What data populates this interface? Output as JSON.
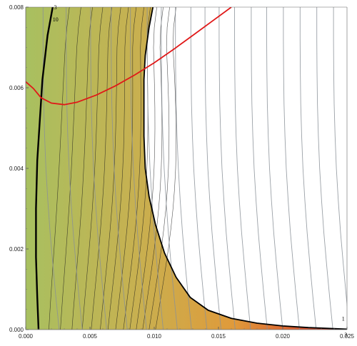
{
  "chart_data": {
    "type": "contour",
    "title": "",
    "xlabel": "",
    "ylabel": "",
    "xlim": [
      0,
      0.025
    ],
    "ylim": [
      0,
      0.008
    ],
    "x_ticks": [
      {
        "value": 0.0,
        "label": "0.000"
      },
      {
        "value": 0.005,
        "label": "0.005"
      },
      {
        "value": 0.01,
        "label": "0.010"
      },
      {
        "value": 0.015,
        "label": "0.015"
      },
      {
        "value": 0.02,
        "label": "0.020"
      },
      {
        "value": 0.025,
        "label": "0.025"
      }
    ],
    "y_ticks": [
      {
        "value": 0.0,
        "label": "0.000"
      },
      {
        "value": 0.002,
        "label": "0.002"
      },
      {
        "value": 0.004,
        "label": "0.004"
      },
      {
        "value": 0.006,
        "label": "0.006"
      },
      {
        "value": 0.008,
        "label": "0.008"
      }
    ],
    "colors": {
      "region_left": "#a8c060",
      "region_mid": "#e0a040",
      "region_edge": "#d8302a",
      "boundary": "#000000",
      "red_curve": "#e01818",
      "gray_lines": "#8a9098",
      "black_contours": "#1a1a1a"
    },
    "boundary_curve": [
      [
        0.0099,
        0.008
      ],
      [
        0.0096,
        0.0075
      ],
      [
        0.0093,
        0.0068
      ],
      [
        0.0092,
        0.0062
      ],
      [
        0.0092,
        0.0056
      ],
      [
        0.0092,
        0.0048
      ],
      [
        0.0093,
        0.004
      ],
      [
        0.0096,
        0.0033
      ],
      [
        0.0101,
        0.0026
      ],
      [
        0.0108,
        0.0019
      ],
      [
        0.0117,
        0.0013
      ],
      [
        0.0128,
        0.0008
      ],
      [
        0.0142,
        0.00048
      ],
      [
        0.016,
        0.00028
      ],
      [
        0.018,
        0.00016
      ],
      [
        0.02,
        9e-05
      ],
      [
        0.022,
        5e-05
      ],
      [
        0.025,
        1e-05
      ]
    ],
    "left_black_curve": [
      [
        0.0021,
        0.008
      ],
      [
        0.0017,
        0.0073
      ],
      [
        0.0013,
        0.0062
      ],
      [
        0.0011,
        0.0052
      ],
      [
        0.0009,
        0.0042
      ],
      [
        0.0008,
        0.003
      ],
      [
        0.0008,
        0.0018
      ],
      [
        0.0009,
        0.0008
      ],
      [
        0.001,
        0.0
      ]
    ],
    "red_curve": [
      [
        0.0,
        0.00615
      ],
      [
        0.0006,
        0.00598
      ],
      [
        0.0012,
        0.00575
      ],
      [
        0.002,
        0.00562
      ],
      [
        0.003,
        0.00558
      ],
      [
        0.004,
        0.00564
      ],
      [
        0.0055,
        0.00582
      ],
      [
        0.007,
        0.00605
      ],
      [
        0.0085,
        0.00632
      ],
      [
        0.01,
        0.00662
      ],
      [
        0.0115,
        0.00695
      ],
      [
        0.013,
        0.0073
      ],
      [
        0.0145,
        0.00765
      ],
      [
        0.016,
        0.008
      ]
    ],
    "gray_line_x_bottom": [
      0.0026,
      0.0044,
      0.0063,
      0.0079,
      0.0094,
      0.0107,
      0.0118,
      0.0129,
      0.0141,
      0.0152,
      0.0163,
      0.0175,
      0.0188,
      0.02,
      0.0213,
      0.0226,
      0.0239,
      0.0252,
      0.0266,
      0.0281,
      0.0296,
      0.0311,
      0.0326,
      0.0341,
      0.0356,
      0.0371
    ],
    "gray_line_slope": 0.00125,
    "black_contour_x_bottom": [
      0.0018,
      0.0027,
      0.0036,
      0.0044,
      0.0051,
      0.0058,
      0.0064,
      0.007,
      0.0076,
      0.0081,
      0.0086,
      0.0091,
      0.0096,
      0.0101
    ],
    "contour_labels": [
      {
        "text": "3",
        "x": 0.0022,
        "y": 0.00795
      },
      {
        "text": "10",
        "x": 0.0021,
        "y": 0.00765
      },
      {
        "text": "1",
        "x": 0.0246,
        "y": 0.00022
      },
      {
        "text": "3",
        "x": 0.0248,
        "y": -0.00018
      }
    ]
  }
}
